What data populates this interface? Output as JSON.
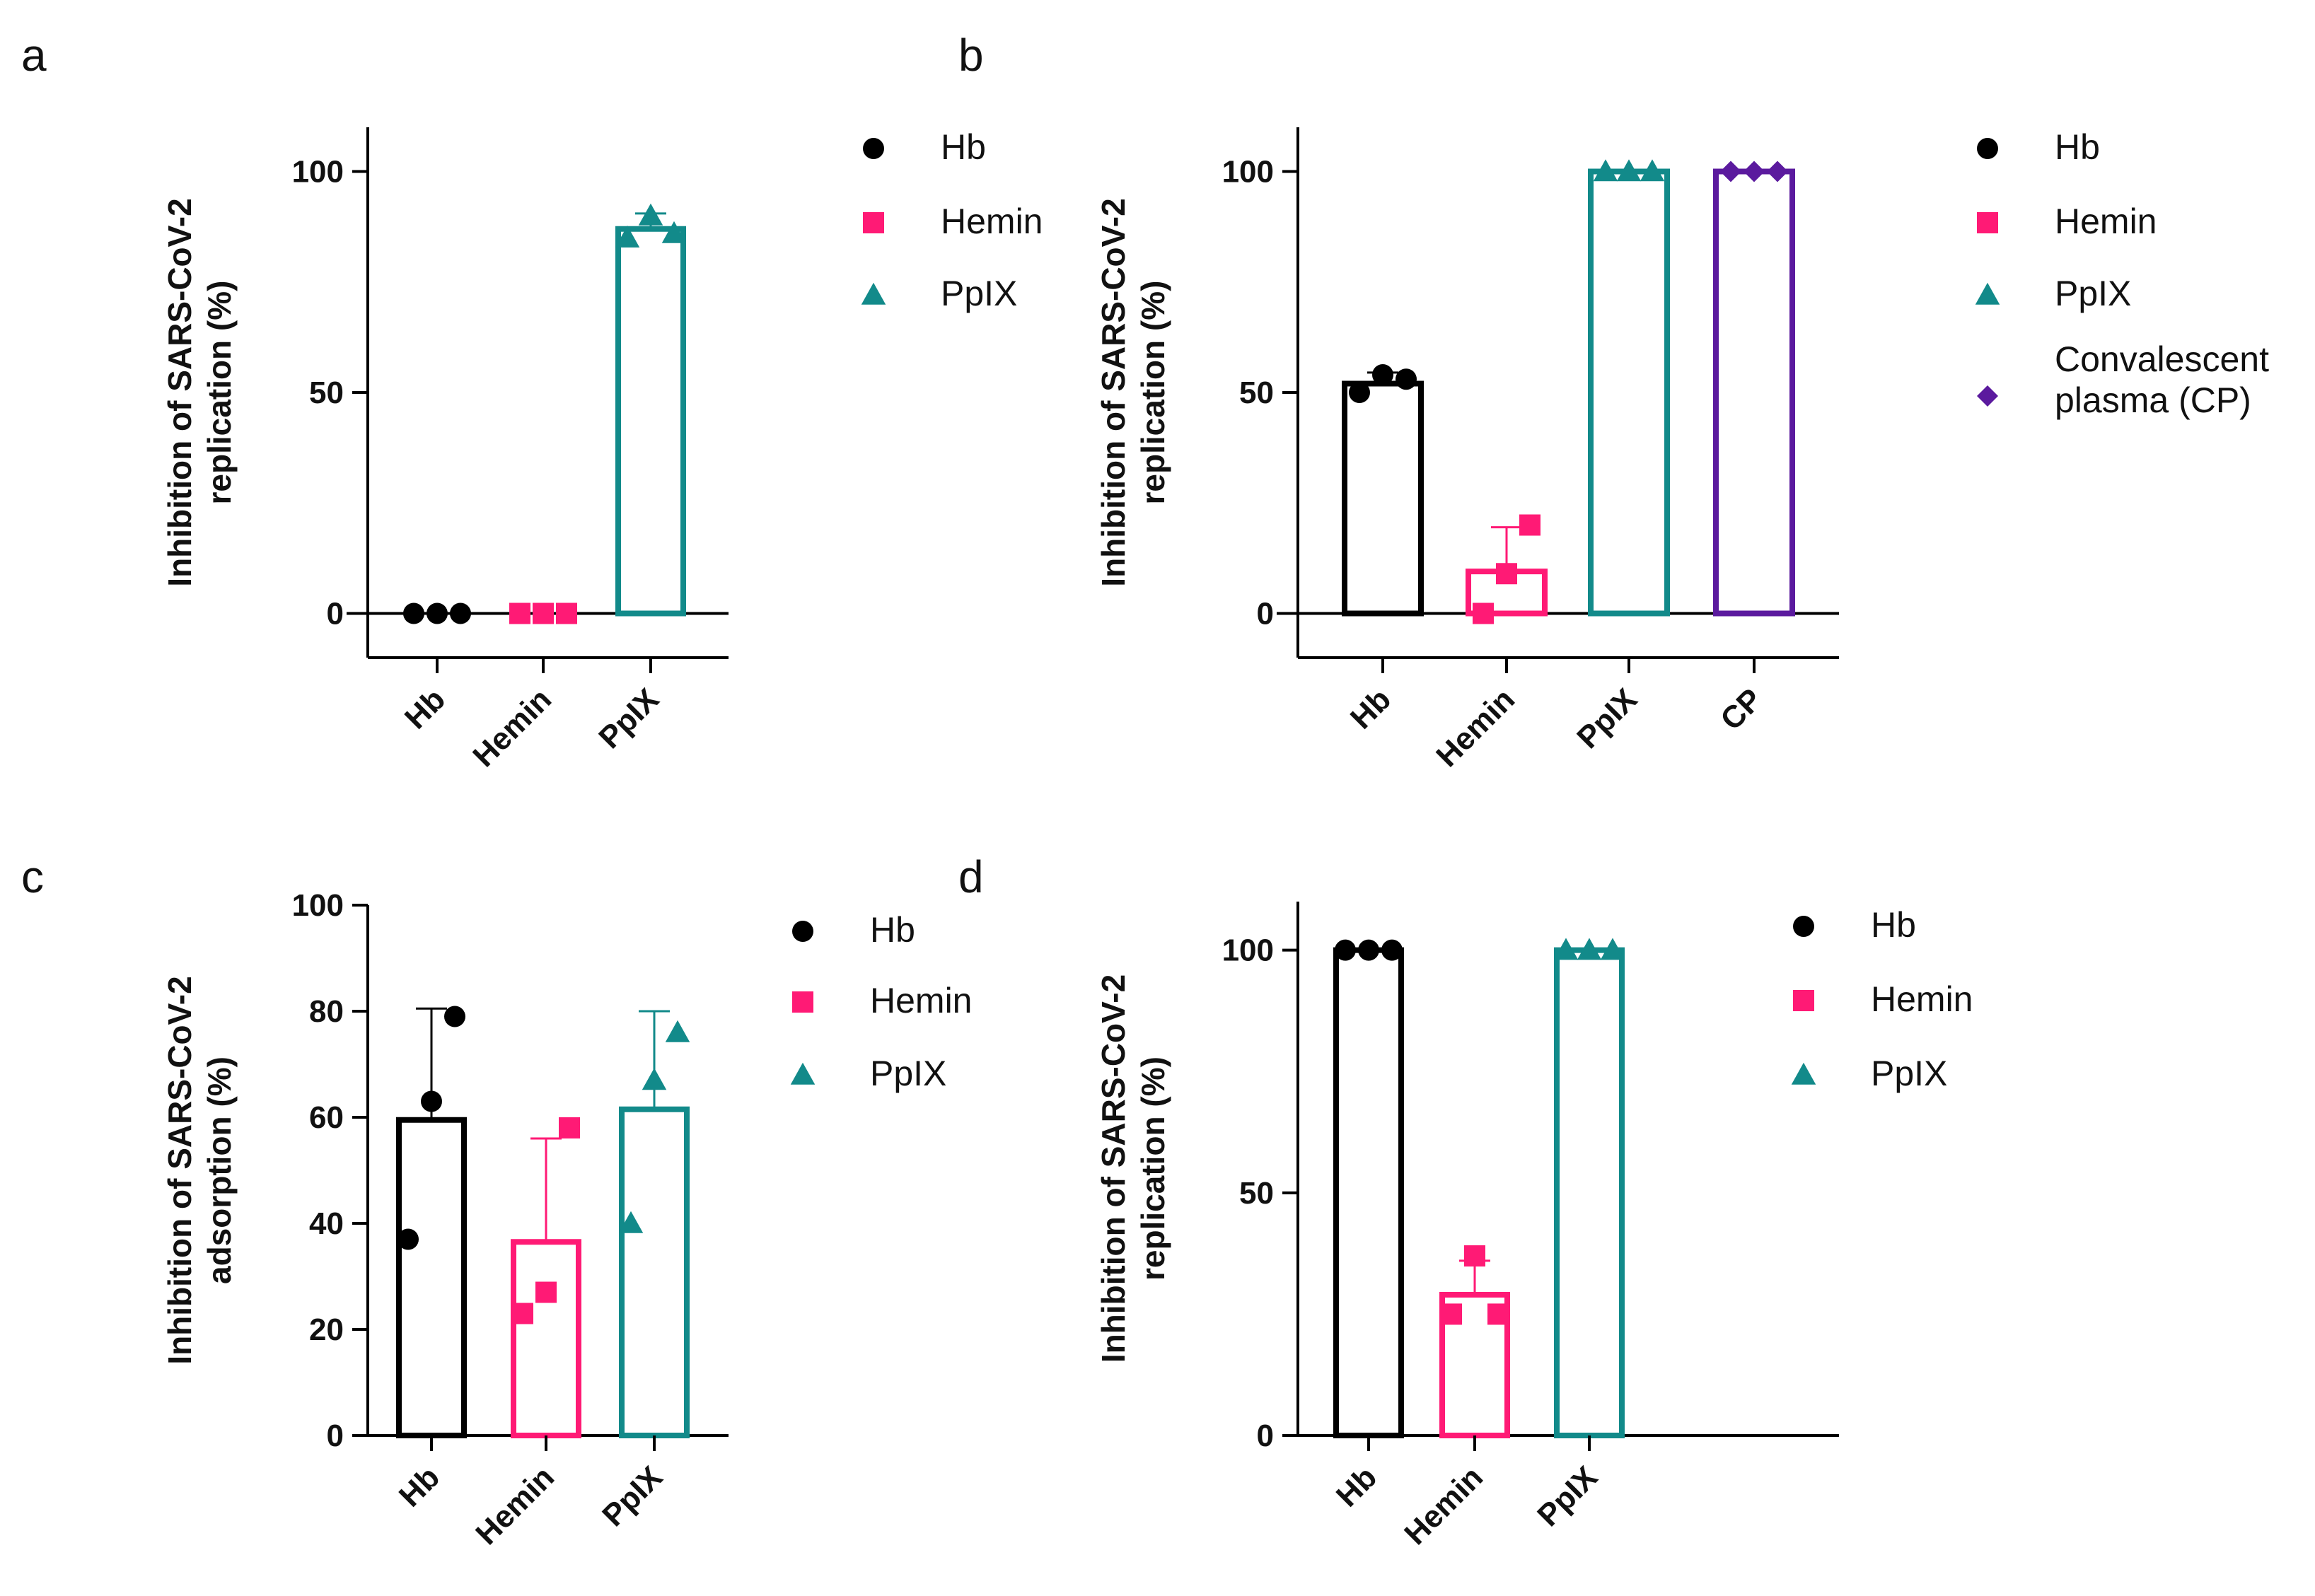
{
  "chart_data": [
    {
      "panel": "a",
      "type": "bar",
      "ylabel": [
        "Inhibition of SARS-CoV-2",
        "replication (%)"
      ],
      "ylim": [
        -10,
        110
      ],
      "yticks": [
        0,
        50,
        100
      ],
      "categories": [
        "Hb",
        "Hemin",
        "PpIX"
      ],
      "series": [
        {
          "name": "Hb",
          "color": "#000000",
          "marker": "circle",
          "mean": 0,
          "error": 0,
          "points": [
            0,
            0,
            0
          ]
        },
        {
          "name": "Hemin",
          "color": "#ff1a75",
          "marker": "square",
          "mean": 0,
          "error": 0,
          "points": [
            0,
            0,
            0
          ]
        },
        {
          "name": "PpIX",
          "color": "#128a8a",
          "marker": "triangle",
          "mean": 87,
          "error": 3.5,
          "points": [
            85,
            90,
            86
          ]
        }
      ],
      "legend_placement": "right"
    },
    {
      "panel": "b",
      "type": "bar",
      "ylabel": [
        "Inhibition of SARS-CoV-2",
        "replication (%)"
      ],
      "ylim": [
        -10,
        110
      ],
      "yticks": [
        0,
        50,
        100
      ],
      "categories": [
        "Hb",
        "Hemin",
        "PpIX",
        "CP"
      ],
      "series": [
        {
          "name": "Hb",
          "color": "#000000",
          "marker": "circle",
          "mean": 52,
          "error": 2.5,
          "points": [
            50,
            54,
            53
          ]
        },
        {
          "name": "Hemin",
          "color": "#ff1a75",
          "marker": "square",
          "mean": 9.5,
          "error": 10,
          "points": [
            0,
            9,
            20
          ]
        },
        {
          "name": "PpIX",
          "color": "#128a8a",
          "marker": "triangle",
          "mean": 100,
          "error": 0,
          "points": [
            100,
            100,
            100
          ]
        },
        {
          "name": "Convalescent plasma (CP)",
          "legend_lines": [
            "Convalescent",
            "plasma (CP)"
          ],
          "color": "#5b1a9e",
          "marker": "diamond",
          "mean": 100,
          "error": 0,
          "points": [
            100,
            100,
            100
          ]
        }
      ],
      "legend_placement": "right"
    },
    {
      "panel": "c",
      "type": "bar",
      "ylabel": [
        "Inhibition of SARS-CoV-2",
        "adsorption (%)"
      ],
      "ylim": [
        0,
        100
      ],
      "yticks": [
        0,
        20,
        40,
        60,
        80,
        100
      ],
      "categories": [
        "Hb",
        "Hemin",
        "PpIX"
      ],
      "series": [
        {
          "name": "Hb",
          "color": "#000000",
          "marker": "circle",
          "mean": 59.5,
          "error": 21,
          "points": [
            37,
            63,
            79
          ]
        },
        {
          "name": "Hemin",
          "color": "#ff1a75",
          "marker": "square",
          "mean": 36.5,
          "error": 19.5,
          "points": [
            23,
            27,
            58
          ]
        },
        {
          "name": "PpIX",
          "color": "#128a8a",
          "marker": "triangle",
          "mean": 61.5,
          "error": 18.5,
          "points": [
            40,
            67,
            76
          ]
        }
      ],
      "legend_placement": "right"
    },
    {
      "panel": "d",
      "type": "bar",
      "ylabel": [
        "Inhibition of SARS-CoV-2",
        "replication (%)"
      ],
      "ylim": [
        0,
        110
      ],
      "yticks": [
        0,
        50,
        100
      ],
      "categories": [
        "Hb",
        "Hemin",
        "PpIX"
      ],
      "series": [
        {
          "name": "Hb",
          "color": "#000000",
          "marker": "circle",
          "mean": 100,
          "error": 0,
          "points": [
            100,
            100,
            100
          ]
        },
        {
          "name": "Hemin",
          "color": "#ff1a75",
          "marker": "square",
          "mean": 29,
          "error": 7,
          "points": [
            25,
            37,
            25
          ]
        },
        {
          "name": "PpIX",
          "color": "#128a8a",
          "marker": "triangle",
          "mean": 100,
          "error": 0,
          "points": [
            100,
            100,
            100
          ]
        }
      ],
      "legend_placement": "right"
    }
  ]
}
